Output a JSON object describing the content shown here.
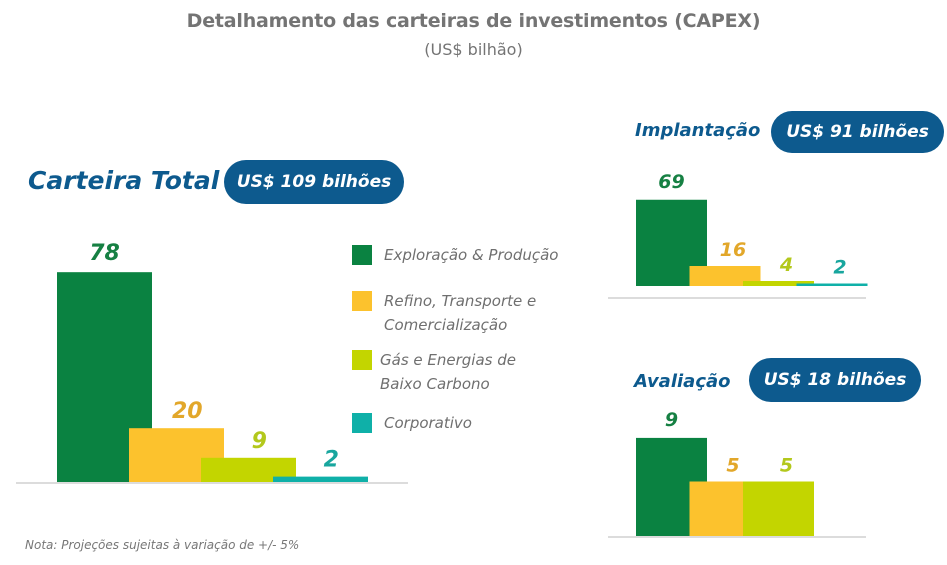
{
  "header": {
    "title": "Detalhamento das carteiras de investimentos (CAPEX)",
    "subtitle": "(US$ bilhão)"
  },
  "sections": {
    "total": {
      "title": "Carteira Total",
      "pill": "US$ 109 bilhões"
    },
    "implantacao": {
      "title": "Implantação",
      "pill": "US$ 91 bilhões"
    },
    "avaliacao": {
      "title": "Avaliação",
      "pill": "US$ 18 bilhões"
    }
  },
  "legend": [
    {
      "line1": "Exploração & Produção",
      "line2": "",
      "color": "#0a8241"
    },
    {
      "line1": "Refino, Transporte e",
      "line2": "Comercialização",
      "color": "#fcc22d"
    },
    {
      "line1": "Gás e Energias de",
      "line2": "Baixo Carbono",
      "color": "#c3d500"
    },
    {
      "line1": "Corporativo",
      "line2": "",
      "color": "#0fb0a8"
    }
  ],
  "label_colors": [
    "#168043",
    "#e2a72a",
    "#b3c81c",
    "#18a69e"
  ],
  "note": "Nota: Projeções sujeitas à variação de +/- 5%",
  "chart_data": [
    {
      "type": "bar",
      "title": "Carteira Total",
      "subtitle": "US$ 109 bilhões",
      "categories": [
        "Exploração & Produção",
        "Refino, Transporte e Comercialização",
        "Gás e Energias de Baixo Carbono",
        "Corporativo"
      ],
      "values": [
        78,
        20,
        9,
        2
      ],
      "labels": [
        "78",
        "20",
        "9",
        "2"
      ],
      "unit": "US$ bilhão",
      "xlabel": "",
      "ylabel": "",
      "grid": false,
      "legend": "right"
    },
    {
      "type": "bar",
      "title": "Implantação",
      "subtitle": "US$ 91 bilhões",
      "categories": [
        "Exploração & Produção",
        "Refino, Transporte e Comercialização",
        "Gás e Energias de Baixo Carbono",
        "Corporativo"
      ],
      "values": [
        69,
        16,
        4,
        2
      ],
      "labels": [
        "69",
        "16",
        "4",
        "2"
      ],
      "unit": "US$ bilhão",
      "xlabel": "",
      "ylabel": "",
      "grid": false
    },
    {
      "type": "bar",
      "title": "Avaliação",
      "subtitle": "US$ 18 bilhões",
      "categories": [
        "Exploração & Produção",
        "Refino, Transporte e Comercialização",
        "Gás e Energias de Baixo Carbono"
      ],
      "values": [
        9,
        5,
        5
      ],
      "labels": [
        "9",
        "5",
        "5"
      ],
      "unit": "US$ bilhão",
      "xlabel": "",
      "ylabel": "",
      "grid": false
    }
  ]
}
